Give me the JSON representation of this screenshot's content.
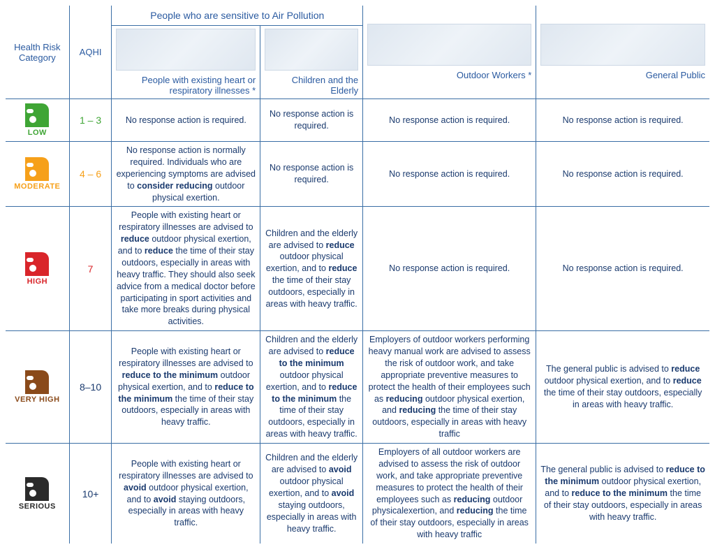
{
  "headers": {
    "category": "Health Risk Category",
    "aqhi": "AQHI",
    "sensitive_group": "People who are sensitive to Air Pollution",
    "illnesses": "People with existing heart or respiratory illnesses *",
    "children": "Children and the Elderly",
    "outdoor": "Outdoor Workers *",
    "public": "General Public"
  },
  "risk_levels": [
    {
      "id": "low",
      "label": "LOW",
      "aqhi": "1 – 3",
      "icon_color": "#3fa535",
      "label_color": "#3fa535",
      "aqhi_color": "#3fa535"
    },
    {
      "id": "moderate",
      "label": "MODERATE",
      "aqhi": "4 – 6",
      "icon_color": "#f6a01a",
      "label_color": "#f6a01a",
      "aqhi_color": "#f6a01a"
    },
    {
      "id": "high",
      "label": "HIGH",
      "aqhi": "7",
      "icon_color": "#d9252a",
      "label_color": "#d9252a",
      "aqhi_color": "#d9252a"
    },
    {
      "id": "veryhigh",
      "label": "VERY HIGH",
      "aqhi": "8–10",
      "icon_color": "#8a4a1a",
      "label_color": "#8a4a1a",
      "aqhi_color": "#1a3a6e"
    },
    {
      "id": "serious",
      "label": "SERIOUS",
      "aqhi": "10+",
      "icon_color": "#2b2b2b",
      "label_color": "#2b2b2b",
      "aqhi_color": "#1a3a6e"
    }
  ],
  "advice": {
    "low": {
      "illnesses": "No response action is required.",
      "children": "No response action is required.",
      "outdoor": "No response action is required.",
      "public": "No response action is required."
    },
    "moderate": {
      "illnesses": "No response action is normally required. Individuals who are experiencing symptoms are advised to <b>consider reducing</b> outdoor physical exertion.",
      "children": "No response action is required.",
      "outdoor": "No response action is required.",
      "public": "No response action is required."
    },
    "high": {
      "illnesses": "People with existing heart or respiratory illnesses are advised to <b>reduce</b> outdoor physical exertion, and to <b>reduce</b> the time of their stay outdoors, especially in areas with heavy traffic. They should also seek advice from a medical doctor before participating in sport activities and take more breaks during physical activities.",
      "children": "Children and the elderly are advised to <b>reduce</b> outdoor physical exertion, and to <b>reduce</b> the time of their stay outdoors, especially in areas with heavy traffic.",
      "outdoor": "No response action is required.",
      "public": "No response action is required."
    },
    "veryhigh": {
      "illnesses": "People with existing heart or respiratory illnesses are advised to <b>reduce to the minimum</b> outdoor physical exertion, and to <b>reduce to the minimum</b> the time of their stay outdoors, especially in areas with heavy traffic.",
      "children": "Children and the elderly are advised to <b>reduce to the minimum</b> outdoor physical exertion, and to <b>reduce to the minimum</b> the time of their stay outdoors, especially in areas with heavy traffic.",
      "outdoor": "Employers of outdoor workers performing heavy manual work are advised to assess the risk of outdoor work, and take appropriate preventive measures to protect the health of their employees such as <b>reducing</b> outdoor physical exertion, and <b>reducing</b> the time of their stay outdoors, especially in areas with heavy traffic",
      "public": "The general public is advised to <b>reduce</b> outdoor physical exertion, and to <b>reduce</b> the time of their stay outdoors, especially in areas with heavy traffic."
    },
    "serious": {
      "illnesses": "People with existing heart or respiratory illnesses are advised to <b>avoid</b> outdoor physical exertion, and to <b>avoid</b> staying outdoors, especially in areas with heavy traffic.",
      "children": "Children and the elderly are advised to <b>avoid</b> outdoor physical exertion, and to <b>avoid</b> staying outdoors, especially in areas with heavy traffic.",
      "outdoor": "Employers of all outdoor workers are advised to assess the risk of outdoor work, and take appropriate preventive measures to protect the health of their employees such as <b>reducing</b> outdoor physicalexertion, and <b>reducing</b> the time of their stay outdoors, especially in areas with heavy traffic",
      "public": "The general public is advised to <b>reduce to the minimum</b> outdoor physical exertion, and to <b>reduce to the minimum</b> the time of their stay outdoors, especially in areas with heavy traffic."
    }
  }
}
